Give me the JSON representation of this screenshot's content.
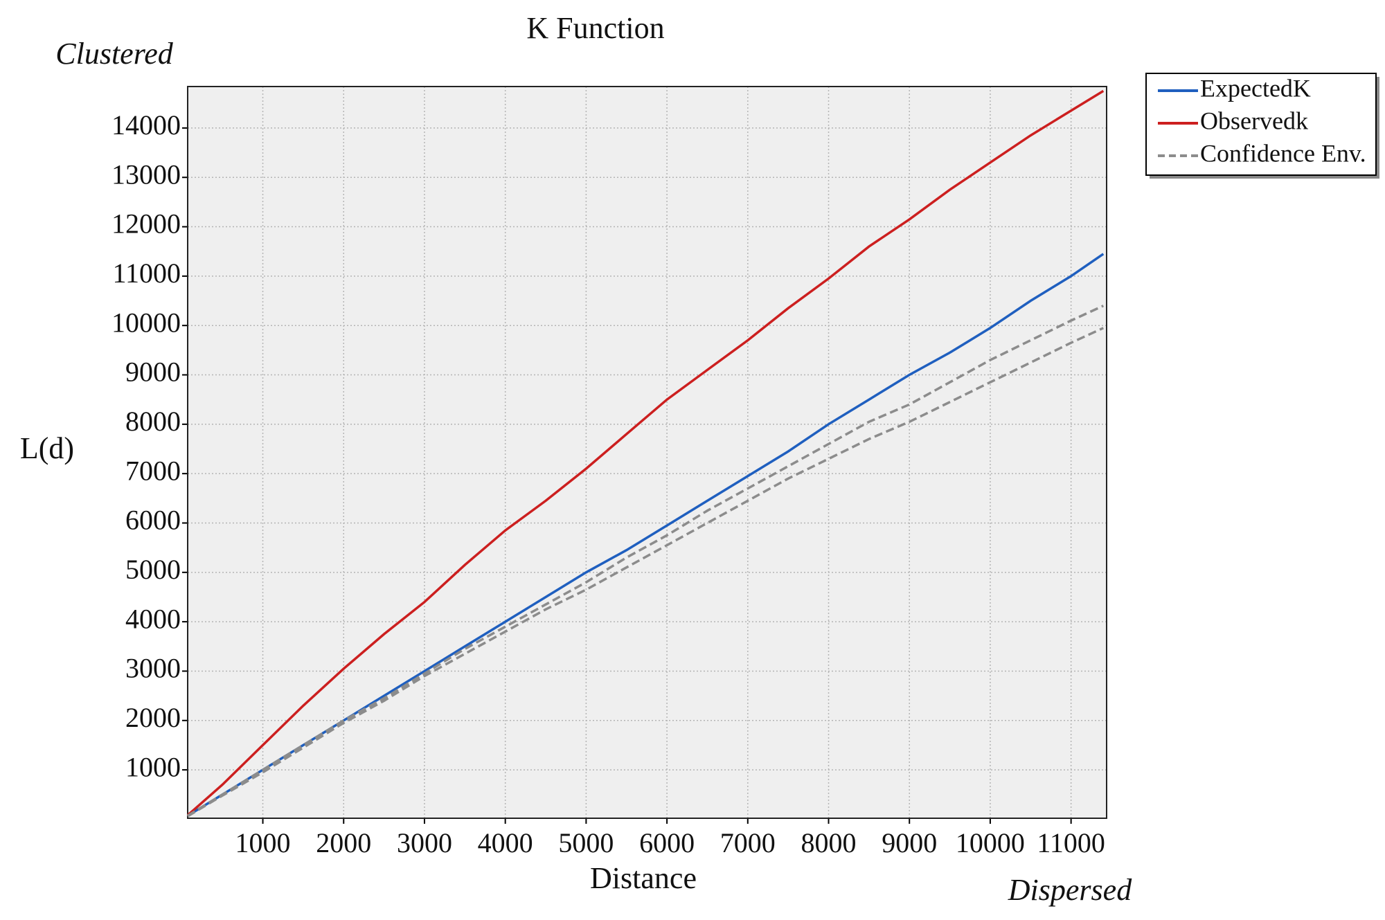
{
  "chart_data": {
    "type": "line",
    "title": "K Function",
    "annotations": {
      "top_left": "Clustered",
      "bottom_right": "Dispersed"
    },
    "xlabel": "Distance",
    "ylabel": "L(d)",
    "x": [
      70,
      500,
      1000,
      1500,
      2000,
      2500,
      3000,
      3500,
      4000,
      4500,
      5000,
      5500,
      6000,
      6500,
      7000,
      7500,
      8000,
      8500,
      9000,
      9500,
      10000,
      10500,
      11000,
      11400
    ],
    "series": [
      {
        "name": "ExpectedK",
        "color": "#1f5fbf",
        "values": [
          70,
          500,
          1000,
          1500,
          2000,
          2500,
          3000,
          3500,
          4000,
          4500,
          5000,
          5450,
          5950,
          6450,
          6950,
          7450,
          8000,
          8500,
          9000,
          9450,
          9950,
          10500,
          11000,
          11450
        ]
      },
      {
        "name": "Observedk",
        "color": "#cc1f1f",
        "values": [
          80,
          700,
          1500,
          2300,
          3050,
          3750,
          4400,
          5150,
          5850,
          6450,
          7100,
          7800,
          8500,
          9100,
          9700,
          10350,
          10950,
          11600,
          12150,
          12750,
          13300,
          13850,
          14350,
          14750
        ]
      },
      {
        "name": "Confidence Env.",
        "color": "#8c8c8c",
        "dashed": true,
        "values": [
          70,
          500,
          1000,
          1500,
          2000,
          2450,
          2950,
          3450,
          3900,
          4350,
          4800,
          5300,
          5750,
          6250,
          6700,
          7150,
          7600,
          8050,
          8400,
          8850,
          9300,
          9700,
          10100,
          10400
        ],
        "values_lower": [
          60,
          480,
          950,
          1450,
          1950,
          2400,
          2900,
          3350,
          3800,
          4250,
          4650,
          5100,
          5550,
          6000,
          6450,
          6900,
          7300,
          7700,
          8050,
          8450,
          8850,
          9250,
          9650,
          9950
        ]
      }
    ],
    "xlim": [
      70,
      11440
    ],
    "ylim": [
      20,
      14840
    ],
    "xticks": [
      1000,
      2000,
      3000,
      4000,
      5000,
      6000,
      7000,
      8000,
      9000,
      10000,
      11000
    ],
    "yticks": [
      1000,
      2000,
      3000,
      4000,
      5000,
      6000,
      7000,
      8000,
      9000,
      10000,
      11000,
      12000,
      13000,
      14000
    ],
    "grid": true,
    "legend": "outside-top-right"
  }
}
